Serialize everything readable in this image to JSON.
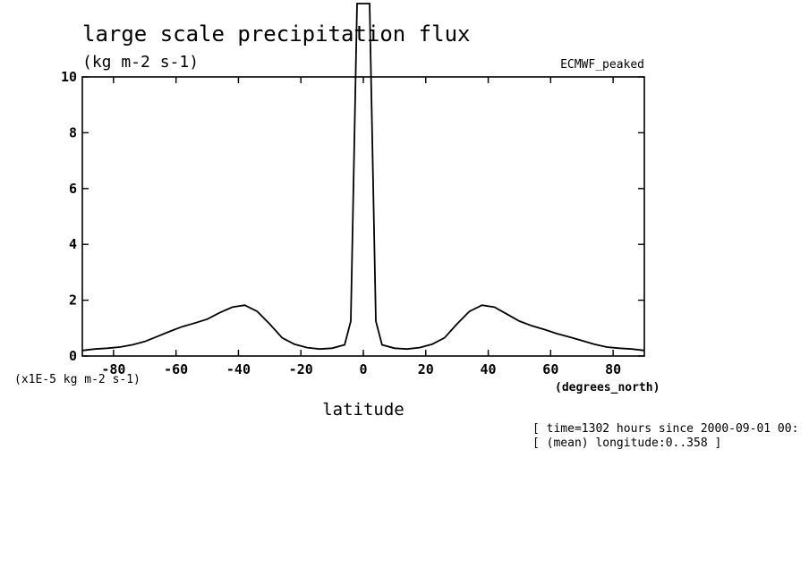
{
  "chart_data": {
    "type": "line",
    "title": "large scale precipitation flux",
    "units": "(kg m-2 s-1)",
    "dataset": "ECMWF_peaked",
    "scale_label": "(x1E-5 kg m-2 s-1)",
    "xlabel": "latitude",
    "xunits": "(degrees_north)",
    "footer_lines": [
      "[ time=1302 hours since 2000-09-01 00:",
      "[ (mean) longitude:0..358 ]"
    ],
    "xlim": [
      -90,
      90
    ],
    "ylim": [
      0,
      10
    ],
    "xticks": [
      -80,
      -60,
      -40,
      -20,
      0,
      20,
      40,
      60,
      80
    ],
    "yticks": [
      0,
      2,
      4,
      6,
      8,
      10
    ],
    "grid": false,
    "x": [
      -90,
      -86,
      -82,
      -78,
      -74,
      -70,
      -66,
      -62,
      -58,
      -54,
      -50,
      -46,
      -42,
      -38,
      -34,
      -30,
      -26,
      -22,
      -18,
      -14,
      -10,
      -6,
      -4,
      -2,
      2,
      4,
      6,
      10,
      14,
      18,
      22,
      26,
      30,
      34,
      38,
      42,
      46,
      50,
      54,
      58,
      62,
      66,
      70,
      74,
      78,
      82,
      86,
      90
    ],
    "values": [
      0.2,
      0.25,
      0.28,
      0.32,
      0.4,
      0.52,
      0.7,
      0.88,
      1.05,
      1.18,
      1.32,
      1.55,
      1.75,
      1.82,
      1.6,
      1.15,
      0.65,
      0.42,
      0.3,
      0.25,
      0.28,
      0.4,
      1.25,
      13.0,
      13.0,
      1.25,
      0.4,
      0.28,
      0.25,
      0.3,
      0.42,
      0.65,
      1.15,
      1.6,
      1.82,
      1.75,
      1.5,
      1.25,
      1.08,
      0.95,
      0.8,
      0.68,
      0.55,
      0.42,
      0.32,
      0.28,
      0.25,
      0.2
    ]
  }
}
